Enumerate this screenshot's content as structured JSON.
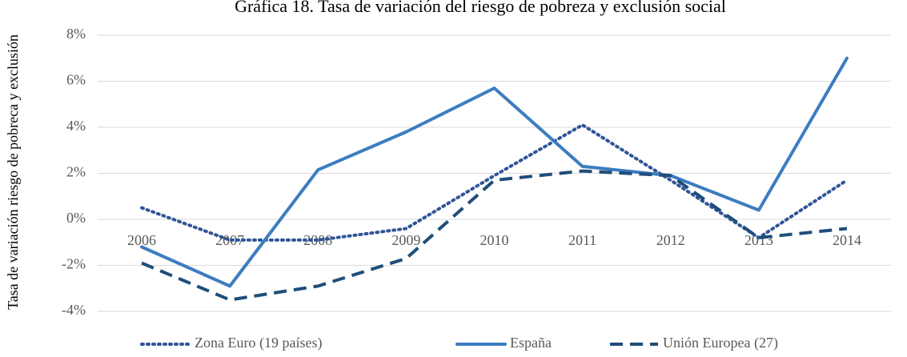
{
  "chart_data": {
    "type": "line",
    "title": "Gráfica 18. Tasa de variación del riesgo de pobreza y exclusión social",
    "y_label": "Tasa de variación riesgo de pobreca y exclusión",
    "categories": [
      "2006",
      "2007",
      "2008",
      "2009",
      "2010",
      "2011",
      "2012",
      "2013",
      "2014"
    ],
    "series": [
      {
        "name": "Zona Euro (19 países)",
        "color": "#2f5597",
        "dash": "dotted",
        "values": [
          0.5,
          -0.9,
          -0.9,
          -0.4,
          1.9,
          4.1,
          1.7,
          -0.8,
          1.7
        ]
      },
      {
        "name": "España",
        "color": "#3d7cc0",
        "dash": "solid",
        "values": [
          -1.2,
          -2.9,
          2.15,
          3.8,
          5.7,
          2.3,
          1.9,
          0.4,
          7.0
        ]
      },
      {
        "name": "Unión Europea (27)",
        "color": "#1f4e79",
        "dash": "dashed",
        "values": [
          -1.9,
          -3.5,
          -2.9,
          -1.7,
          1.7,
          2.1,
          1.9,
          -0.8,
          -0.4
        ]
      }
    ],
    "ylim": [
      -4,
      8
    ],
    "yticks": [
      {
        "value": -4,
        "label": "-4%"
      },
      {
        "value": -2,
        "label": "-2%"
      },
      {
        "value": 0,
        "label": "0%"
      },
      {
        "value": 2,
        "label": "2%"
      },
      {
        "value": 4,
        "label": "4%"
      },
      {
        "value": 6,
        "label": "6%"
      },
      {
        "value": 8,
        "label": "8%"
      }
    ],
    "grid": true,
    "legend": "bottom"
  }
}
